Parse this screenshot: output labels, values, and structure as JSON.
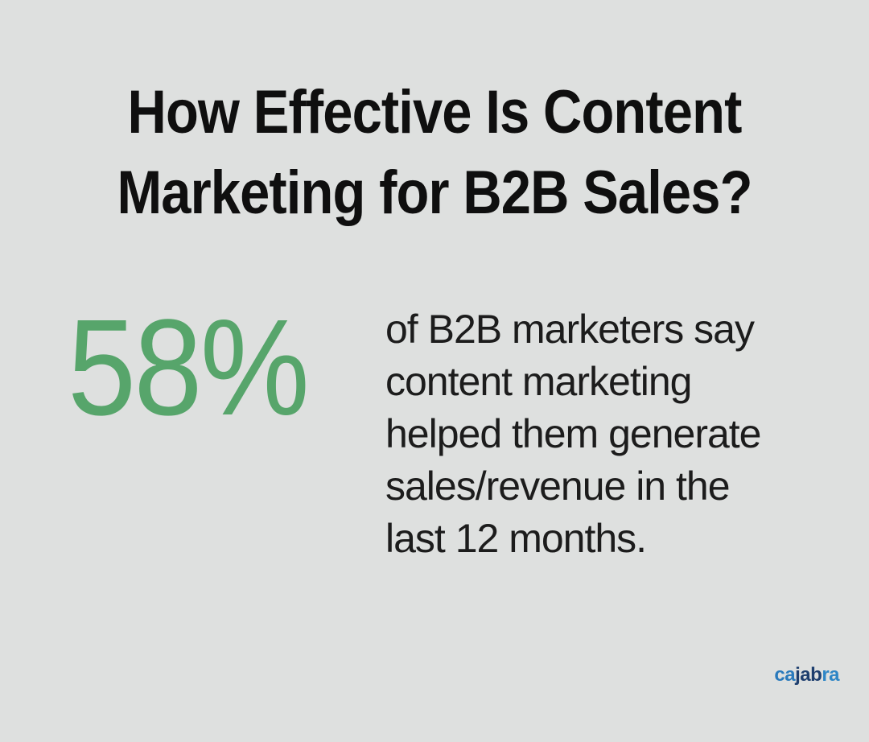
{
  "infographic": {
    "title": "How Effective Is Content\nMarketing for B2B Sales?",
    "stat": {
      "value": "58%",
      "description": "of B2B marketers say\ncontent marketing\nhelped them generate\nsales/revenue in the\nlast 12 months."
    },
    "brand": {
      "name": "cajabra",
      "part1": "ca",
      "part2": "jab",
      "part3": "ra"
    },
    "colors": {
      "background": "#dee0df",
      "title_text": "#0f0f0f",
      "body_text": "#1c1c1c",
      "stat_green": "#57a56b",
      "brand_blue": "#2a7abc",
      "brand_navy": "#1d3e6e",
      "brand_light_blue": "#2e86c6"
    }
  }
}
